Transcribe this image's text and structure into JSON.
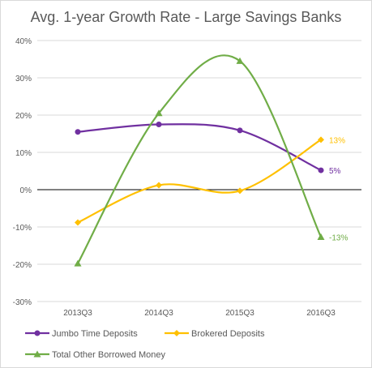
{
  "chart_data": {
    "type": "line",
    "title": "Avg. 1-year Growth Rate - Large Savings Banks",
    "xlabel": "",
    "ylabel": "",
    "categories": [
      "2013Q3",
      "2014Q3",
      "2015Q3",
      "2016Q3"
    ],
    "ylim": [
      -30,
      40
    ],
    "yticks": [
      -30,
      -20,
      -10,
      0,
      10,
      20,
      30,
      40
    ],
    "ytick_labels": [
      "-30%",
      "-20%",
      "-10%",
      "0%",
      "10%",
      "20%",
      "30%",
      "40%"
    ],
    "grid": true,
    "smooth": true,
    "legend_position": "bottom",
    "series": [
      {
        "name": "Jumbo Time Deposits",
        "values": [
          15.5,
          17.5,
          15.9,
          5.2
        ],
        "color": "#7030a0",
        "marker": "circle",
        "end_label": "5%"
      },
      {
        "name": "Brokered Deposits",
        "values": [
          -8.8,
          1.2,
          -0.3,
          13.4
        ],
        "color": "#ffc000",
        "marker": "diamond",
        "end_label": "13%"
      },
      {
        "name": "Total Other Borrowed Money",
        "values": [
          -19.8,
          20.5,
          34.5,
          -12.7
        ],
        "color": "#70ad47",
        "marker": "triangle",
        "end_label": "-13%"
      }
    ]
  }
}
